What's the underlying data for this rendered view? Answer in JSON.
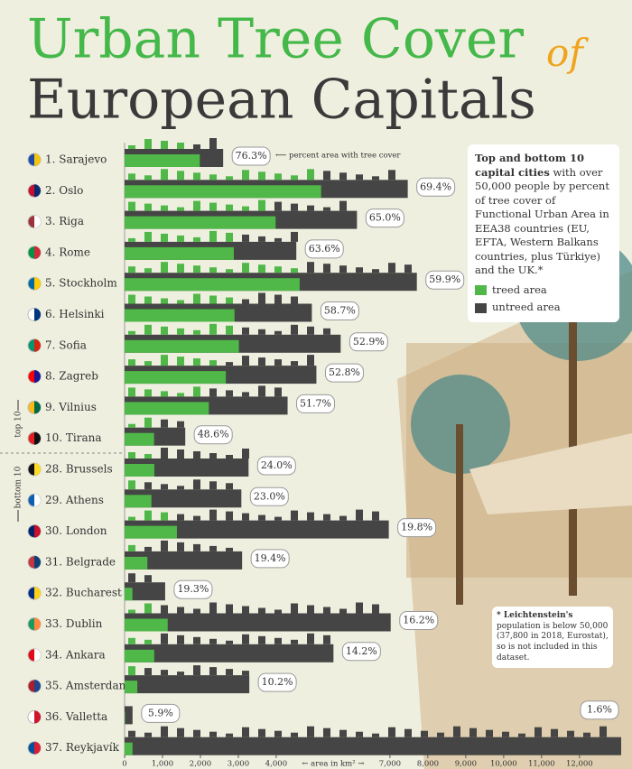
{
  "chart_data": {
    "type": "bar",
    "title_line1": "Urban Tree Cover",
    "title_of": "of",
    "title_line2": "European Capitals",
    "categories": [
      "1. Sarajevo",
      "2. Oslo",
      "3. Riga",
      "4. Rome",
      "5. Stockholm",
      "6. Helsinki",
      "7. Sofia",
      "8. Zagreb",
      "9. Vilnius",
      "10. Tirana",
      "28. Brussels",
      "29. Athens",
      "30. London",
      "31. Belgrade",
      "32. Bucharest",
      "33. Dublin",
      "34. Ankara",
      "35. Amsterdam",
      "36. Valletta",
      "37. Reykjavík"
    ],
    "values": [
      76.3,
      69.4,
      65.0,
      63.6,
      59.9,
      58.7,
      52.9,
      52.8,
      51.7,
      48.6,
      24.0,
      23.0,
      19.8,
      19.4,
      19.3,
      16.2,
      14.2,
      10.2,
      5.9,
      1.6
    ],
    "value_labels": [
      "76.3%",
      "69.4%",
      "65.0%",
      "63.6%",
      "59.9%",
      "58.7%",
      "52.9%",
      "52.8%",
      "51.7%",
      "48.6%",
      "24.0%",
      "23.0%",
      "19.8%",
      "19.4%",
      "19.3%",
      "16.2%",
      "14.2%",
      "10.2%",
      "5.9%",
      "1.6%"
    ],
    "area_values": [
      2600,
      7470,
      6130,
      4530,
      7710,
      4940,
      5700,
      5060,
      4300,
      1600,
      3270,
      3080,
      6970,
      3100,
      1070,
      7020,
      5510,
      3290,
      210,
      13100
    ],
    "xlim": [
      0,
      13100
    ],
    "xticks": [
      0,
      {
        "value": 1000,
        "label": "1,000"
      },
      {
        "value": 2000,
        "label": "2,000"
      },
      {
        "value": 3000,
        "label": "3,000"
      },
      {
        "value": 4000,
        "label": "4,000"
      },
      {
        "value": 7000,
        "label": "7,000"
      },
      {
        "value": 8000,
        "label": "8,000"
      },
      {
        "value": 9000,
        "label": "9,000"
      },
      {
        "value": 10000,
        "label": "10,000"
      },
      {
        "value": 11000,
        "label": "11,000"
      },
      {
        "value": 12000,
        "label": "12,000"
      }
    ],
    "x_label": "← area in km² →",
    "annotation": "⟵ percent area with tree cover",
    "group_labels": [
      "top 10",
      "bottom 10"
    ],
    "description_bold": "Top and bottom 10 capital cities",
    "description": "with over 50,000 people by percent of tree cover of Functional Urban Area in EEA38 countries (EU, EFTA, Western Balkans countries, plus Türkiye) and the UK.*",
    "legend": [
      {
        "name": "treed area",
        "color": "#4fb848"
      },
      {
        "name": "untreed area",
        "color": "#454545"
      }
    ],
    "note_bold": "* Leichtenstein's",
    "note": "population is below 50,000 (37,800 in 2018, Eurostat), so is not included in this dataset."
  }
}
